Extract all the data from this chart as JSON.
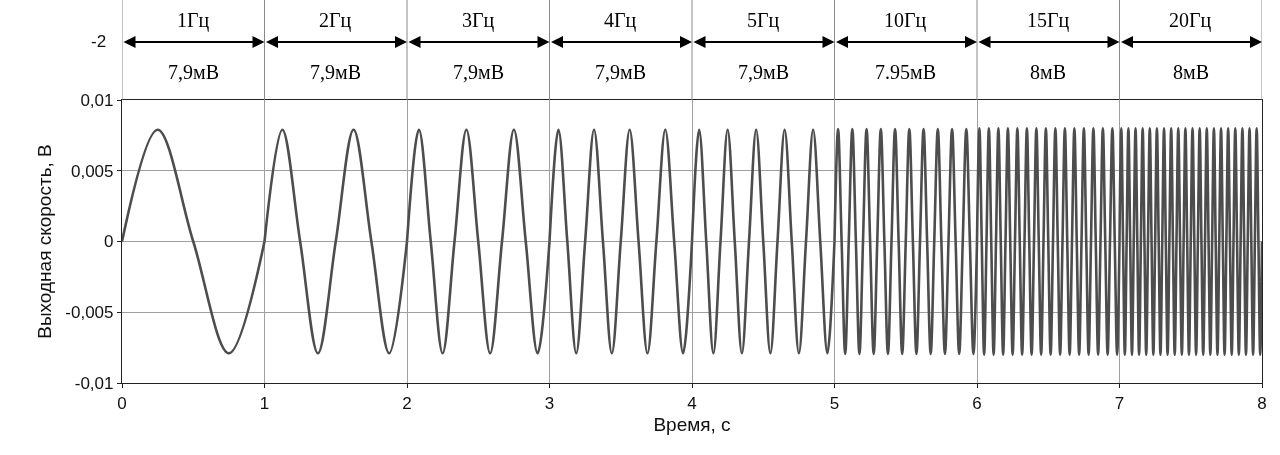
{
  "chart_data": {
    "type": "line",
    "xlabel": "Время, с",
    "ylabel": "Выходная скорость, В",
    "xlim": [
      0,
      8
    ],
    "xticks": [
      0,
      1,
      2,
      3,
      4,
      5,
      6,
      7,
      8
    ],
    "ylim": [
      -0.01,
      0.01
    ],
    "yticks": [
      {
        "value": -0.01,
        "label": "-0,01"
      },
      {
        "value": -0.005,
        "label": "-0,005"
      },
      {
        "value": 0,
        "label": "0"
      },
      {
        "value": 0.005,
        "label": "0,005"
      },
      {
        "value": 0.01,
        "label": "0,01"
      }
    ],
    "grid": true,
    "line_style": "solid",
    "annotations": [
      "-2",
      "1Гц",
      "2Гц",
      "3Гц",
      "4Гц",
      "5Гц",
      "10Гц",
      "15Гц",
      "20Гц",
      "7,9мВ",
      "7,9мВ",
      "7,9мВ",
      "7,9мВ",
      "7,9мВ",
      "7.95мВ",
      "8мВ",
      "8мВ"
    ],
    "series": [
      {
        "color": "#4d4d4d",
        "x": [
          0,
          0.25,
          0.5,
          0.75,
          1
        ],
        "values": [
          0,
          0.0079,
          0,
          -0.0079,
          0
        ]
      },
      {
        "color": "#4d4d4d",
        "x": [
          1,
          1.125,
          1.25,
          1.375,
          1.5,
          1.625,
          1.75,
          1.875,
          2
        ],
        "values": [
          0,
          0.0079,
          0,
          -0.0079,
          0,
          0.0079,
          0,
          -0.0079,
          0
        ]
      },
      {
        "color": "#4d4d4d",
        "x": [
          2,
          2.0833,
          2.1667,
          2.25,
          2.3333,
          2.4167,
          2.5,
          2.5833,
          2.6667,
          2.75,
          2.8333,
          2.9167,
          3
        ],
        "values": [
          0,
          0.0079,
          0,
          -0.0079,
          0,
          0.0079,
          0,
          -0.0079,
          0,
          0.0079,
          0,
          -0.0079,
          0
        ]
      },
      {
        "color": "#4d4d4d",
        "x": [
          3,
          3.0625,
          3.125,
          3.1875,
          3.25,
          3.3125,
          3.375,
          3.4375,
          3.5,
          3.5625,
          3.625,
          3.6875,
          3.75,
          3.8125,
          3.875,
          3.9375,
          4
        ],
        "values": [
          0,
          0.0079,
          0,
          -0.0079,
          0,
          0.0079,
          0,
          -0.0079,
          0,
          0.0079,
          0,
          -0.0079,
          0,
          0.0079,
          0,
          -0.0079,
          0
        ]
      },
      {
        "color": "#4d4d4d",
        "x": [
          4,
          4.05,
          4.1,
          4.15,
          4.2,
          4.25,
          4.3,
          4.35,
          4.4,
          4.45,
          4.5,
          4.55,
          4.6,
          4.65,
          4.7,
          4.75,
          4.8,
          4.85,
          4.9,
          4.95,
          5
        ],
        "values": [
          0,
          0.0079,
          0,
          -0.0079,
          0,
          0.0079,
          0,
          -0.0079,
          0,
          0.0079,
          0,
          -0.0079,
          0,
          0.0079,
          0,
          -0.0079,
          0,
          0.0079,
          0,
          -0.0079,
          0
        ]
      },
      {
        "color": "#4d4d4d",
        "x": [
          5,
          5.025,
          5.05,
          5.075,
          5.1,
          5.125,
          5.15,
          5.175,
          5.2,
          5.225,
          5.25,
          5.275,
          5.3,
          5.325,
          5.35,
          5.375,
          5.4,
          5.425,
          5.45,
          5.475,
          5.5,
          5.525,
          5.55,
          5.575,
          5.6,
          5.625,
          5.65,
          5.675,
          5.7,
          5.725,
          5.75,
          5.775,
          5.8,
          5.825,
          5.85,
          5.875,
          5.9,
          5.925,
          5.95,
          5.975,
          6
        ],
        "values": [
          0,
          0.00795,
          0,
          -0.00795,
          0,
          0.00795,
          0,
          -0.00795,
          0,
          0.00795,
          0,
          -0.00795,
          0,
          0.00795,
          0,
          -0.00795,
          0,
          0.00795,
          0,
          -0.00795,
          0,
          0.00795,
          0,
          -0.00795,
          0,
          0.00795,
          0,
          -0.00795,
          0,
          0.00795,
          0,
          -0.00795,
          0,
          0.00795,
          0,
          -0.00795,
          0,
          0.00795,
          0,
          -0.00795,
          0
        ]
      },
      {
        "color": "#4d4d4d",
        "x": [
          6,
          6.0167,
          6.0333,
          6.05,
          6.0667,
          6.0833,
          6.1,
          6.1167,
          6.1333,
          6.15,
          6.1667,
          6.1833,
          6.2,
          6.2167,
          6.2333,
          6.25,
          6.2667,
          6.2833,
          6.3,
          6.3167,
          6.3333,
          6.35,
          6.3667,
          6.3833,
          6.4,
          6.4167,
          6.4333,
          6.45,
          6.4667,
          6.4833,
          6.5,
          6.5167,
          6.5333,
          6.55,
          6.5667,
          6.5833,
          6.6,
          6.6167,
          6.6333,
          6.65,
          6.6667,
          6.6833,
          6.7,
          6.7167,
          6.7333,
          6.75,
          6.7667,
          6.7833,
          6.8,
          6.8167,
          6.8333,
          6.85,
          6.8667,
          6.8833,
          6.9,
          6.9167,
          6.9333,
          6.95,
          6.9667,
          6.9833,
          7
        ],
        "values": [
          0,
          0.008,
          0,
          -0.008,
          0,
          0.008,
          0,
          -0.008,
          0,
          0.008,
          0,
          -0.008,
          0,
          0.008,
          0,
          -0.008,
          0,
          0.008,
          0,
          -0.008,
          0,
          0.008,
          0,
          -0.008,
          0,
          0.008,
          0,
          -0.008,
          0,
          0.008,
          0,
          -0.008,
          0,
          0.008,
          0,
          -0.008,
          0,
          0.008,
          0,
          -0.008,
          0,
          0.008,
          0,
          -0.008,
          0,
          0.008,
          0,
          -0.008,
          0,
          0.008,
          0,
          -0.008,
          0,
          0.008,
          0,
          -0.008,
          0,
          0.008,
          0,
          -0.008,
          0
        ]
      },
      {
        "color": "#4d4d4d",
        "x": [
          7,
          7.0125,
          7.025,
          7.0375,
          7.05,
          7.0625,
          7.075,
          7.0875,
          7.1,
          7.1125,
          7.125,
          7.1375,
          7.15,
          7.1625,
          7.175,
          7.1875,
          7.2,
          7.2125,
          7.225,
          7.2375,
          7.25,
          7.2625,
          7.275,
          7.2875,
          7.3,
          7.3125,
          7.325,
          7.3375,
          7.35,
          7.3625,
          7.375,
          7.3875,
          7.4,
          7.4125,
          7.425,
          7.4375,
          7.45,
          7.4625,
          7.475,
          7.4875,
          7.5,
          7.5125,
          7.525,
          7.5375,
          7.55,
          7.5625,
          7.575,
          7.5875,
          7.6,
          7.6125,
          7.625,
          7.6375,
          7.65,
          7.6625,
          7.675,
          7.6875,
          7.7,
          7.7125,
          7.725,
          7.7375,
          7.75,
          7.7625,
          7.775,
          7.7875,
          7.8,
          7.8125,
          7.825,
          7.8375,
          7.85,
          7.8625,
          7.875,
          7.8875,
          7.9,
          7.9125,
          7.925,
          7.9375,
          7.95,
          7.9625,
          7.975,
          7.9875,
          8
        ],
        "values": [
          0,
          0.008,
          0,
          -0.008,
          0,
          0.008,
          0,
          -0.008,
          0,
          0.008,
          0,
          -0.008,
          0,
          0.008,
          0,
          -0.008,
          0,
          0.008,
          0,
          -0.008,
          0,
          0.008,
          0,
          -0.008,
          0,
          0.008,
          0,
          -0.008,
          0,
          0.008,
          0,
          -0.008,
          0,
          0.008,
          0,
          -0.008,
          0,
          0.008,
          0,
          -0.008,
          0,
          0.008,
          0,
          -0.008,
          0,
          0.008,
          0,
          -0.008,
          0,
          0.008,
          0,
          -0.008,
          0,
          0.008,
          0,
          -0.008,
          0,
          0.008,
          0,
          -0.008,
          0,
          0.008,
          0,
          -0.008,
          0,
          0.008,
          0,
          -0.008,
          0,
          0.008,
          0,
          -0.008,
          0,
          0.008,
          0,
          -0.008,
          0,
          0.008,
          0,
          -0.008,
          0
        ]
      }
    ]
  }
}
